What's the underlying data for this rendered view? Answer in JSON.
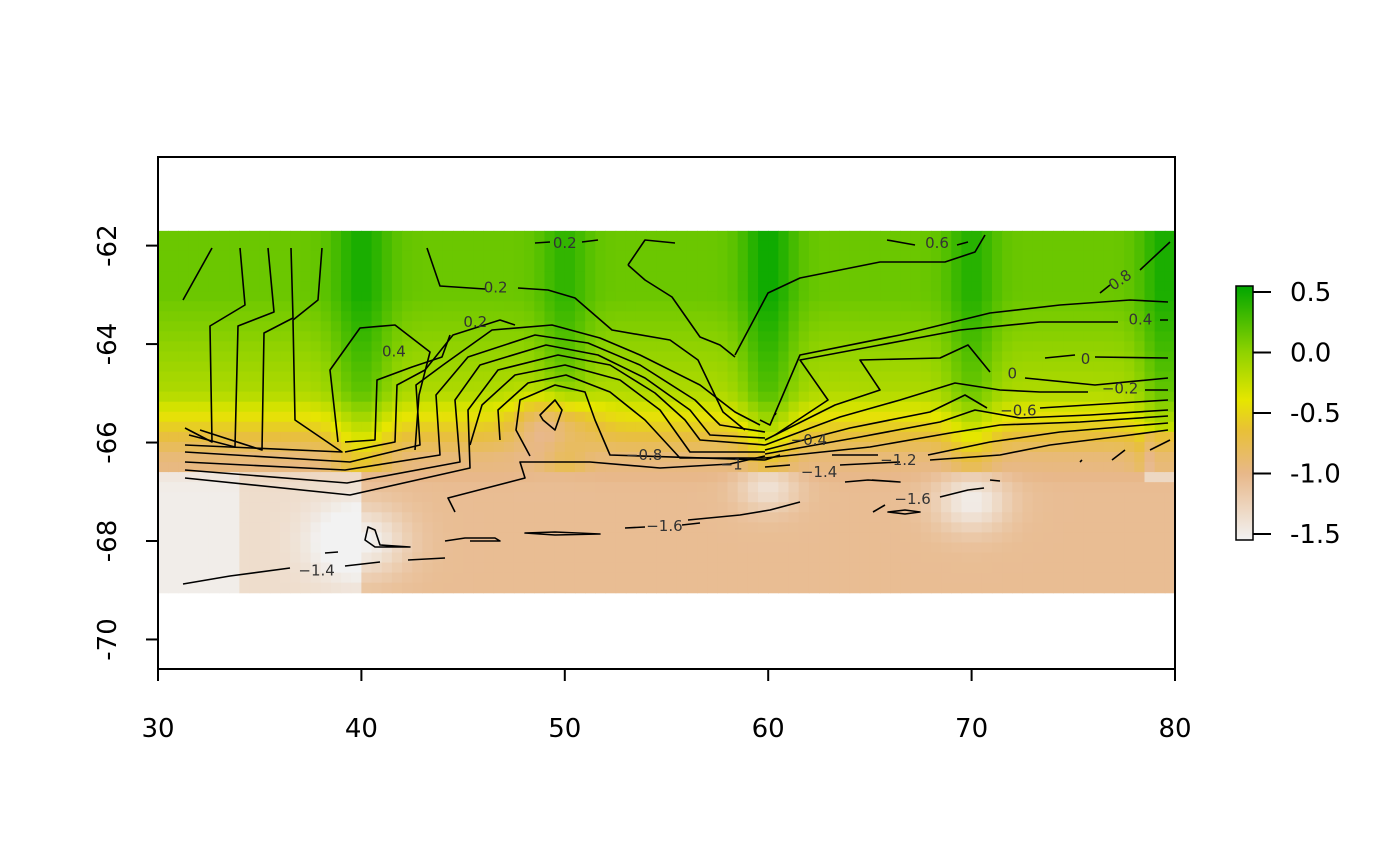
{
  "chart_data": {
    "type": "heatmap",
    "title": "",
    "xlabel": "",
    "ylabel": "",
    "xlim": [
      30,
      80
    ],
    "ylim": [
      -70.6,
      -60.2
    ],
    "x_ticks": [
      {
        "value": 30,
        "label": "30"
      },
      {
        "value": 40,
        "label": "40"
      },
      {
        "value": 50,
        "label": "50"
      },
      {
        "value": 60,
        "label": "60"
      },
      {
        "value": 70,
        "label": "70"
      },
      {
        "value": 80,
        "label": "80"
      }
    ],
    "y_ticks": [
      {
        "value": -62,
        "label": "-62"
      },
      {
        "value": -64,
        "label": "-64"
      },
      {
        "value": -66,
        "label": "-66"
      },
      {
        "value": -68,
        "label": "-68"
      },
      {
        "value": -70,
        "label": "-70"
      }
    ],
    "raster_extent": {
      "x": [
        30,
        80
      ],
      "y": [
        -69.05,
        -61.7
      ]
    },
    "color_scale": {
      "stops": [
        {
          "value": -1.55,
          "color": "#f2f2f2"
        },
        {
          "value": -1.0,
          "color": "#e8b88a"
        },
        {
          "value": -0.65,
          "color": "#e8c038"
        },
        {
          "value": -0.4,
          "color": "#e6e600"
        },
        {
          "value": 0.0,
          "color": "#8fd200"
        },
        {
          "value": 0.6,
          "color": "#00a600"
        }
      ],
      "legend_ticks": [
        {
          "value": 0.5,
          "label": "0.5"
        },
        {
          "value": 0.0,
          "label": "0.0"
        },
        {
          "value": -0.5,
          "label": "-0.5"
        },
        {
          "value": -1.0,
          "label": "-1.0"
        },
        {
          "value": -1.5,
          "label": "-1.5"
        }
      ],
      "legend_range": [
        -1.55,
        0.55
      ]
    },
    "contour_labels": [
      {
        "text": "0.2",
        "x": 50.0,
        "y": -61.95,
        "angle": 0
      },
      {
        "text": "0.6",
        "x": 68.3,
        "y": -61.95,
        "angle": 0
      },
      {
        "text": "0.2",
        "x": 46.6,
        "y": -62.85,
        "angle": 0
      },
      {
        "text": "0.8",
        "x": 77.3,
        "y": -62.7,
        "angle": -35
      },
      {
        "text": "0.2",
        "x": 45.6,
        "y": -63.55,
        "angle": 0
      },
      {
        "text": "0.4",
        "x": 78.3,
        "y": -63.5,
        "angle": 0
      },
      {
        "text": "0.4",
        "x": 41.6,
        "y": -64.15,
        "angle": 0
      },
      {
        "text": "0",
        "x": 75.6,
        "y": -64.3,
        "angle": 0
      },
      {
        "text": "0",
        "x": 72.0,
        "y": -64.6,
        "angle": 0
      },
      {
        "text": "−0.2",
        "x": 77.3,
        "y": -64.9,
        "angle": 0
      },
      {
        "text": "−0.6",
        "x": 72.3,
        "y": -65.35,
        "angle": 0
      },
      {
        "text": "−0.4",
        "x": 62.0,
        "y": -65.95,
        "angle": 0
      },
      {
        "text": "−0.8",
        "x": 53.9,
        "y": -66.25,
        "angle": 0
      },
      {
        "text": "−1",
        "x": 58.2,
        "y": -66.45,
        "angle": 0
      },
      {
        "text": "−1.2",
        "x": 66.4,
        "y": -66.35,
        "angle": 0
      },
      {
        "text": "−1.4",
        "x": 62.5,
        "y": -66.6,
        "angle": 0
      },
      {
        "text": "−1.6",
        "x": 67.1,
        "y": -67.15,
        "angle": 0
      },
      {
        "text": "−1.6",
        "x": 54.9,
        "y": -67.7,
        "angle": 0
      },
      {
        "text": "−1.4",
        "x": 37.8,
        "y": -68.6,
        "angle": 0
      }
    ]
  }
}
